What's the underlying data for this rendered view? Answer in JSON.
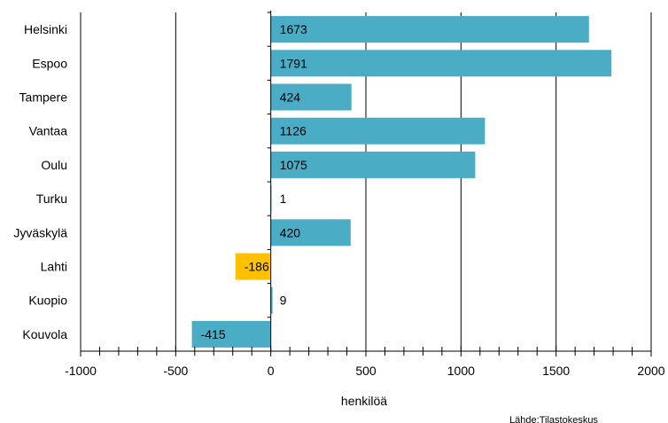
{
  "chart_data": {
    "type": "bar",
    "orientation": "horizontal",
    "categories": [
      "Helsinki",
      "Espoo",
      "Tampere",
      "Vantaa",
      "Oulu",
      "Turku",
      "Jyväskylä",
      "Lahti",
      "Kuopio",
      "Kouvola"
    ],
    "values": [
      1673,
      1791,
      424,
      1126,
      1075,
      1,
      420,
      -186,
      9,
      -415
    ],
    "value_labels": [
      "1673",
      "1791",
      "424",
      "1126",
      "1075",
      "1",
      "420",
      "-186",
      "9",
      "-415"
    ],
    "highlight_category": "Lahti",
    "colors": {
      "default": "#4bacc6",
      "highlight": "#ffc000"
    },
    "xlim": [
      -1000,
      2000
    ],
    "xticks": [
      -1000,
      -500,
      0,
      500,
      1000,
      1500,
      2000
    ],
    "xtick_labels": [
      "-1000",
      "-500",
      "0",
      "500",
      "1000",
      "1500",
      "2000"
    ],
    "xlabel": "henkilöä",
    "grid": true,
    "source": "Lähde:Tilastokeskus"
  }
}
